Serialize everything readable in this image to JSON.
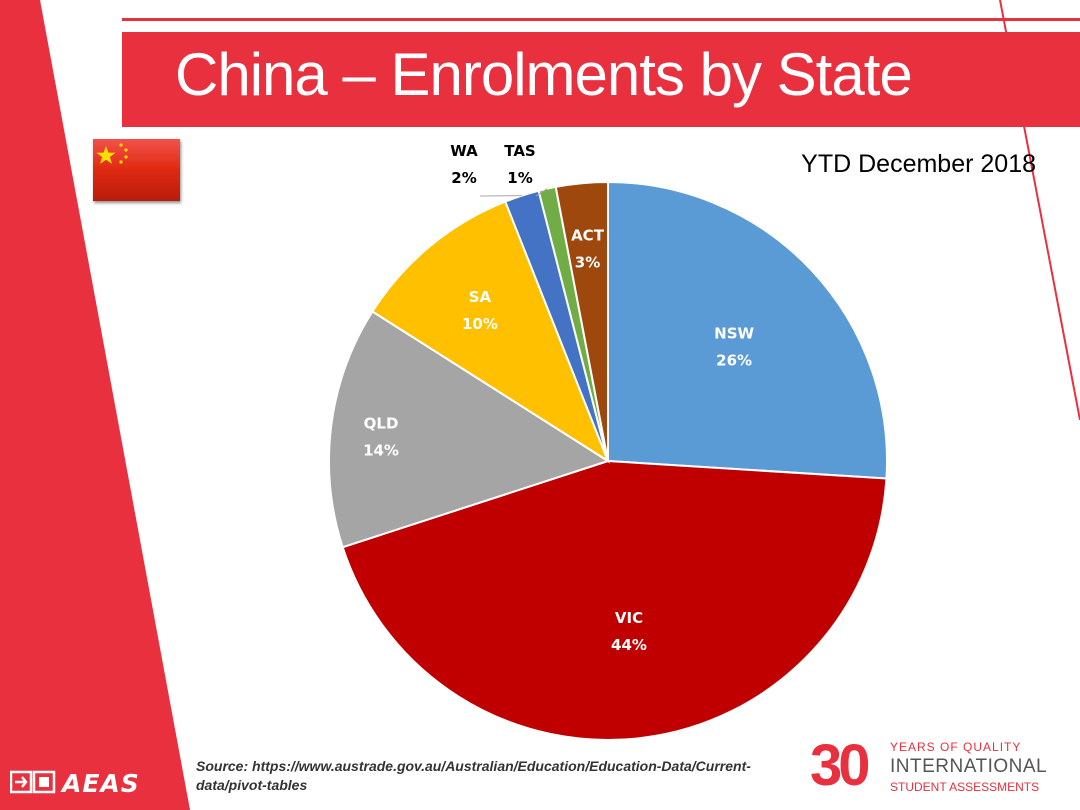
{
  "slide": {
    "title": "China – Enrolments by State",
    "subtitle": "YTD December 2018",
    "source": "Source: https://www.austrade.gov.au/Australian/Education/Education-Data/Current-data/pivot-tables",
    "logo_text": "AEAS",
    "anniversary": {
      "number": "30",
      "line1": "YEARS OF QUALITY",
      "line2": "INTERNATIONAL",
      "line3": "STUDENT ASSESSMENTS"
    },
    "accent_color": "#e8303f",
    "flag_icon": "china-flag-icon"
  },
  "chart_data": {
    "type": "pie",
    "title": "",
    "start_angle_deg": 0,
    "direction": "clockwise",
    "slices": [
      {
        "label": "NSW",
        "value": 26,
        "display": "26%",
        "color": "#5b9bd5",
        "label_color": "#ffffff"
      },
      {
        "label": "VIC",
        "value": 44,
        "display": "44%",
        "color": "#c00000",
        "label_color": "#ffffff"
      },
      {
        "label": "QLD",
        "value": 14,
        "display": "14%",
        "color": "#a5a5a5",
        "label_color": "#ffffff"
      },
      {
        "label": "SA",
        "value": 10,
        "display": "10%",
        "color": "#ffc000",
        "label_color": "#ffffff"
      },
      {
        "label": "WA",
        "value": 2,
        "display": "2%",
        "color": "#4472c4",
        "label_color": "#000000"
      },
      {
        "label": "TAS",
        "value": 1,
        "display": "1%",
        "color": "#70ad47",
        "label_color": "#000000"
      },
      {
        "label": "ACT",
        "value": 3,
        "display": "3%",
        "color": "#9e480e",
        "label_color": "#ffffff"
      }
    ]
  }
}
